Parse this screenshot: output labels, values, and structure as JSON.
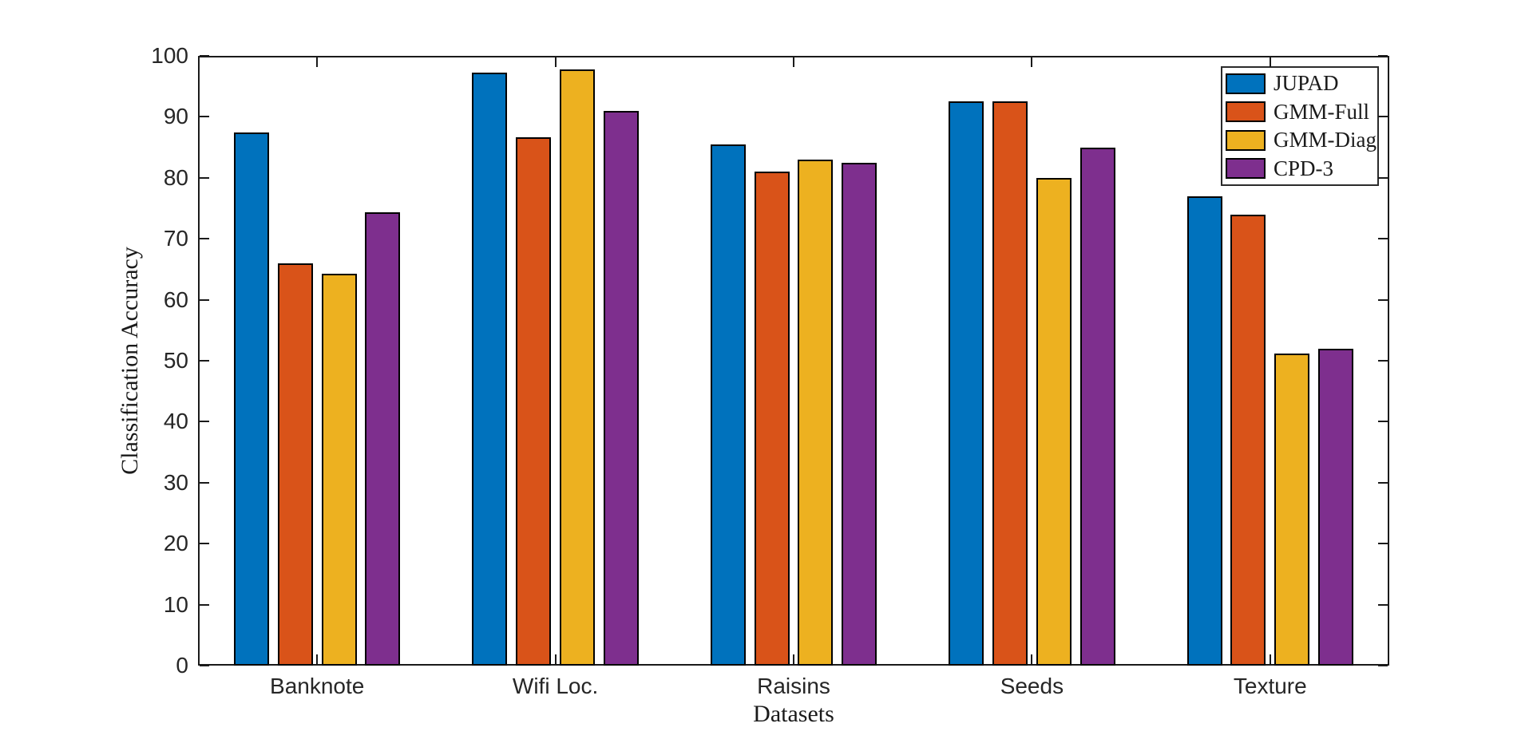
{
  "chart_data": {
    "type": "bar",
    "title": "",
    "xlabel": "Datasets",
    "ylabel": "Classification Accuracy",
    "categories": [
      "Banknote",
      "Wifi Loc.",
      "Raisins",
      "Seeds",
      "Texture"
    ],
    "series": [
      {
        "name": "JUPAD",
        "color": "#0072BD",
        "values": [
          87.4,
          97.3,
          85.5,
          92.5,
          77.0
        ]
      },
      {
        "name": "GMM-Full",
        "color": "#D95319",
        "values": [
          66.0,
          86.7,
          81.0,
          92.5,
          74.0
        ]
      },
      {
        "name": "GMM-Diag",
        "color": "#EDB120",
        "values": [
          64.3,
          97.8,
          83.0,
          80.0,
          51.2
        ]
      },
      {
        "name": "CPD-3",
        "color": "#7E2F8E",
        "values": [
          74.4,
          91.0,
          82.5,
          85.0,
          52.0
        ]
      }
    ],
    "ylim": [
      0,
      100
    ],
    "yticks": [
      0,
      10,
      20,
      30,
      40,
      50,
      60,
      70,
      80,
      90,
      100
    ],
    "grid": false,
    "legend_position": "top-right",
    "bar_edge_color": "#000000",
    "axis_color": "#1a1a1a"
  }
}
